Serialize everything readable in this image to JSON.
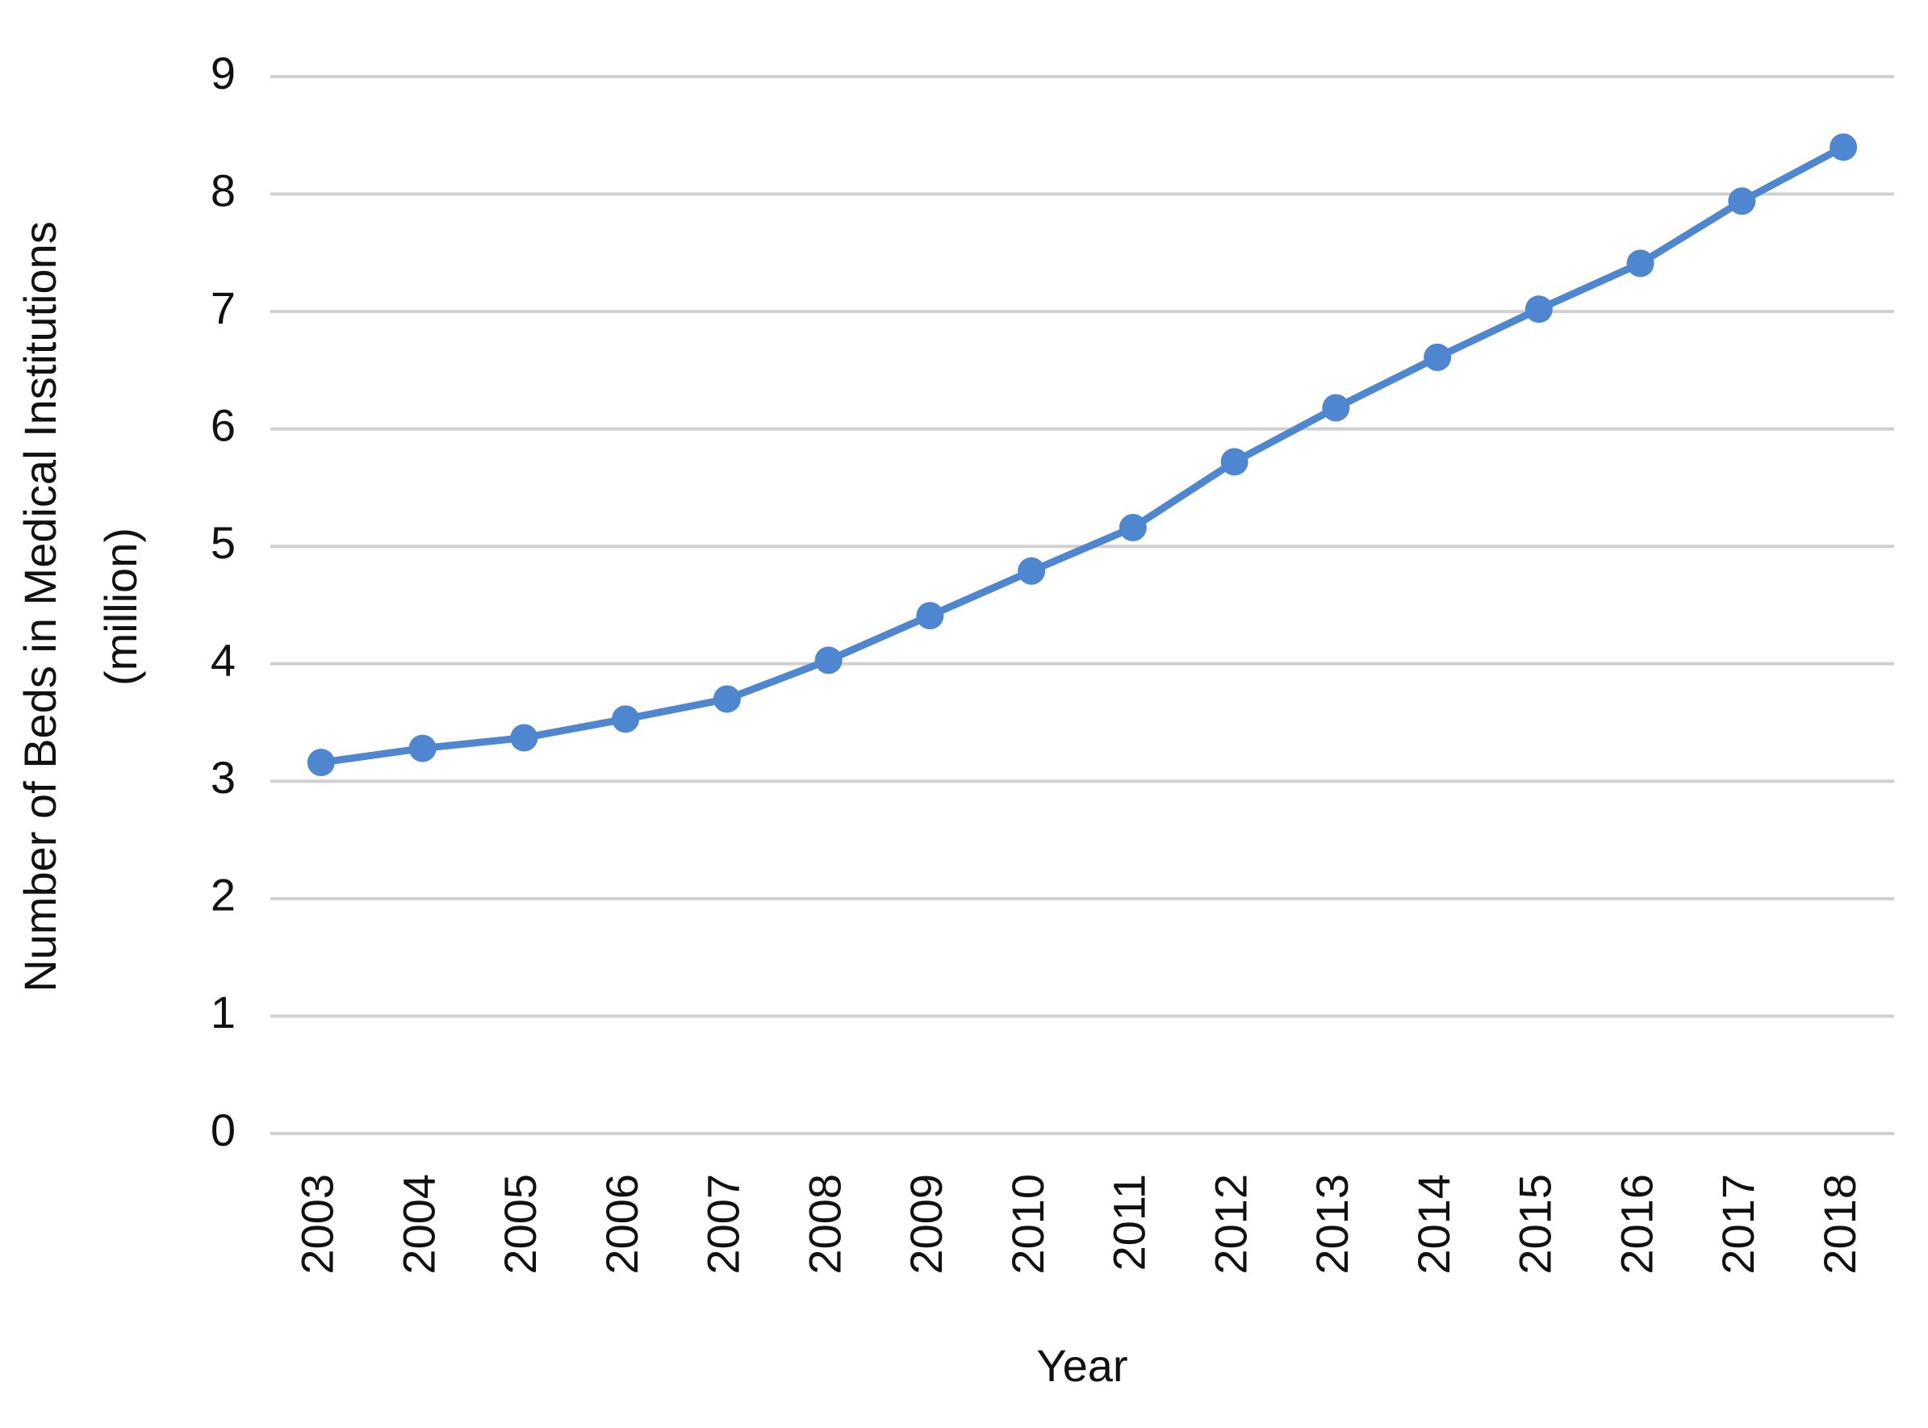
{
  "chart_data": {
    "type": "line",
    "y_label": [
      "Number of Beds in Medical Institutions",
      "(million)"
    ],
    "x_label": "Year",
    "categories": [
      "2003",
      "2004",
      "2005",
      "2006",
      "2007",
      "2008",
      "2009",
      "2010",
      "2011",
      "2012",
      "2013",
      "2014",
      "2015",
      "2016",
      "2017",
      "2018"
    ],
    "series": [
      {
        "color": "#4f86d0",
        "values": [
          3.16,
          3.28,
          3.37,
          3.53,
          3.7,
          4.03,
          4.41,
          4.79,
          5.16,
          5.72,
          6.18,
          6.61,
          7.02,
          7.41,
          7.94,
          8.4
        ]
      }
    ],
    "ylim": [
      0,
      9
    ],
    "yticks": [
      0,
      1,
      2,
      3,
      4,
      5,
      6,
      7,
      8,
      9
    ],
    "grid": true
  }
}
